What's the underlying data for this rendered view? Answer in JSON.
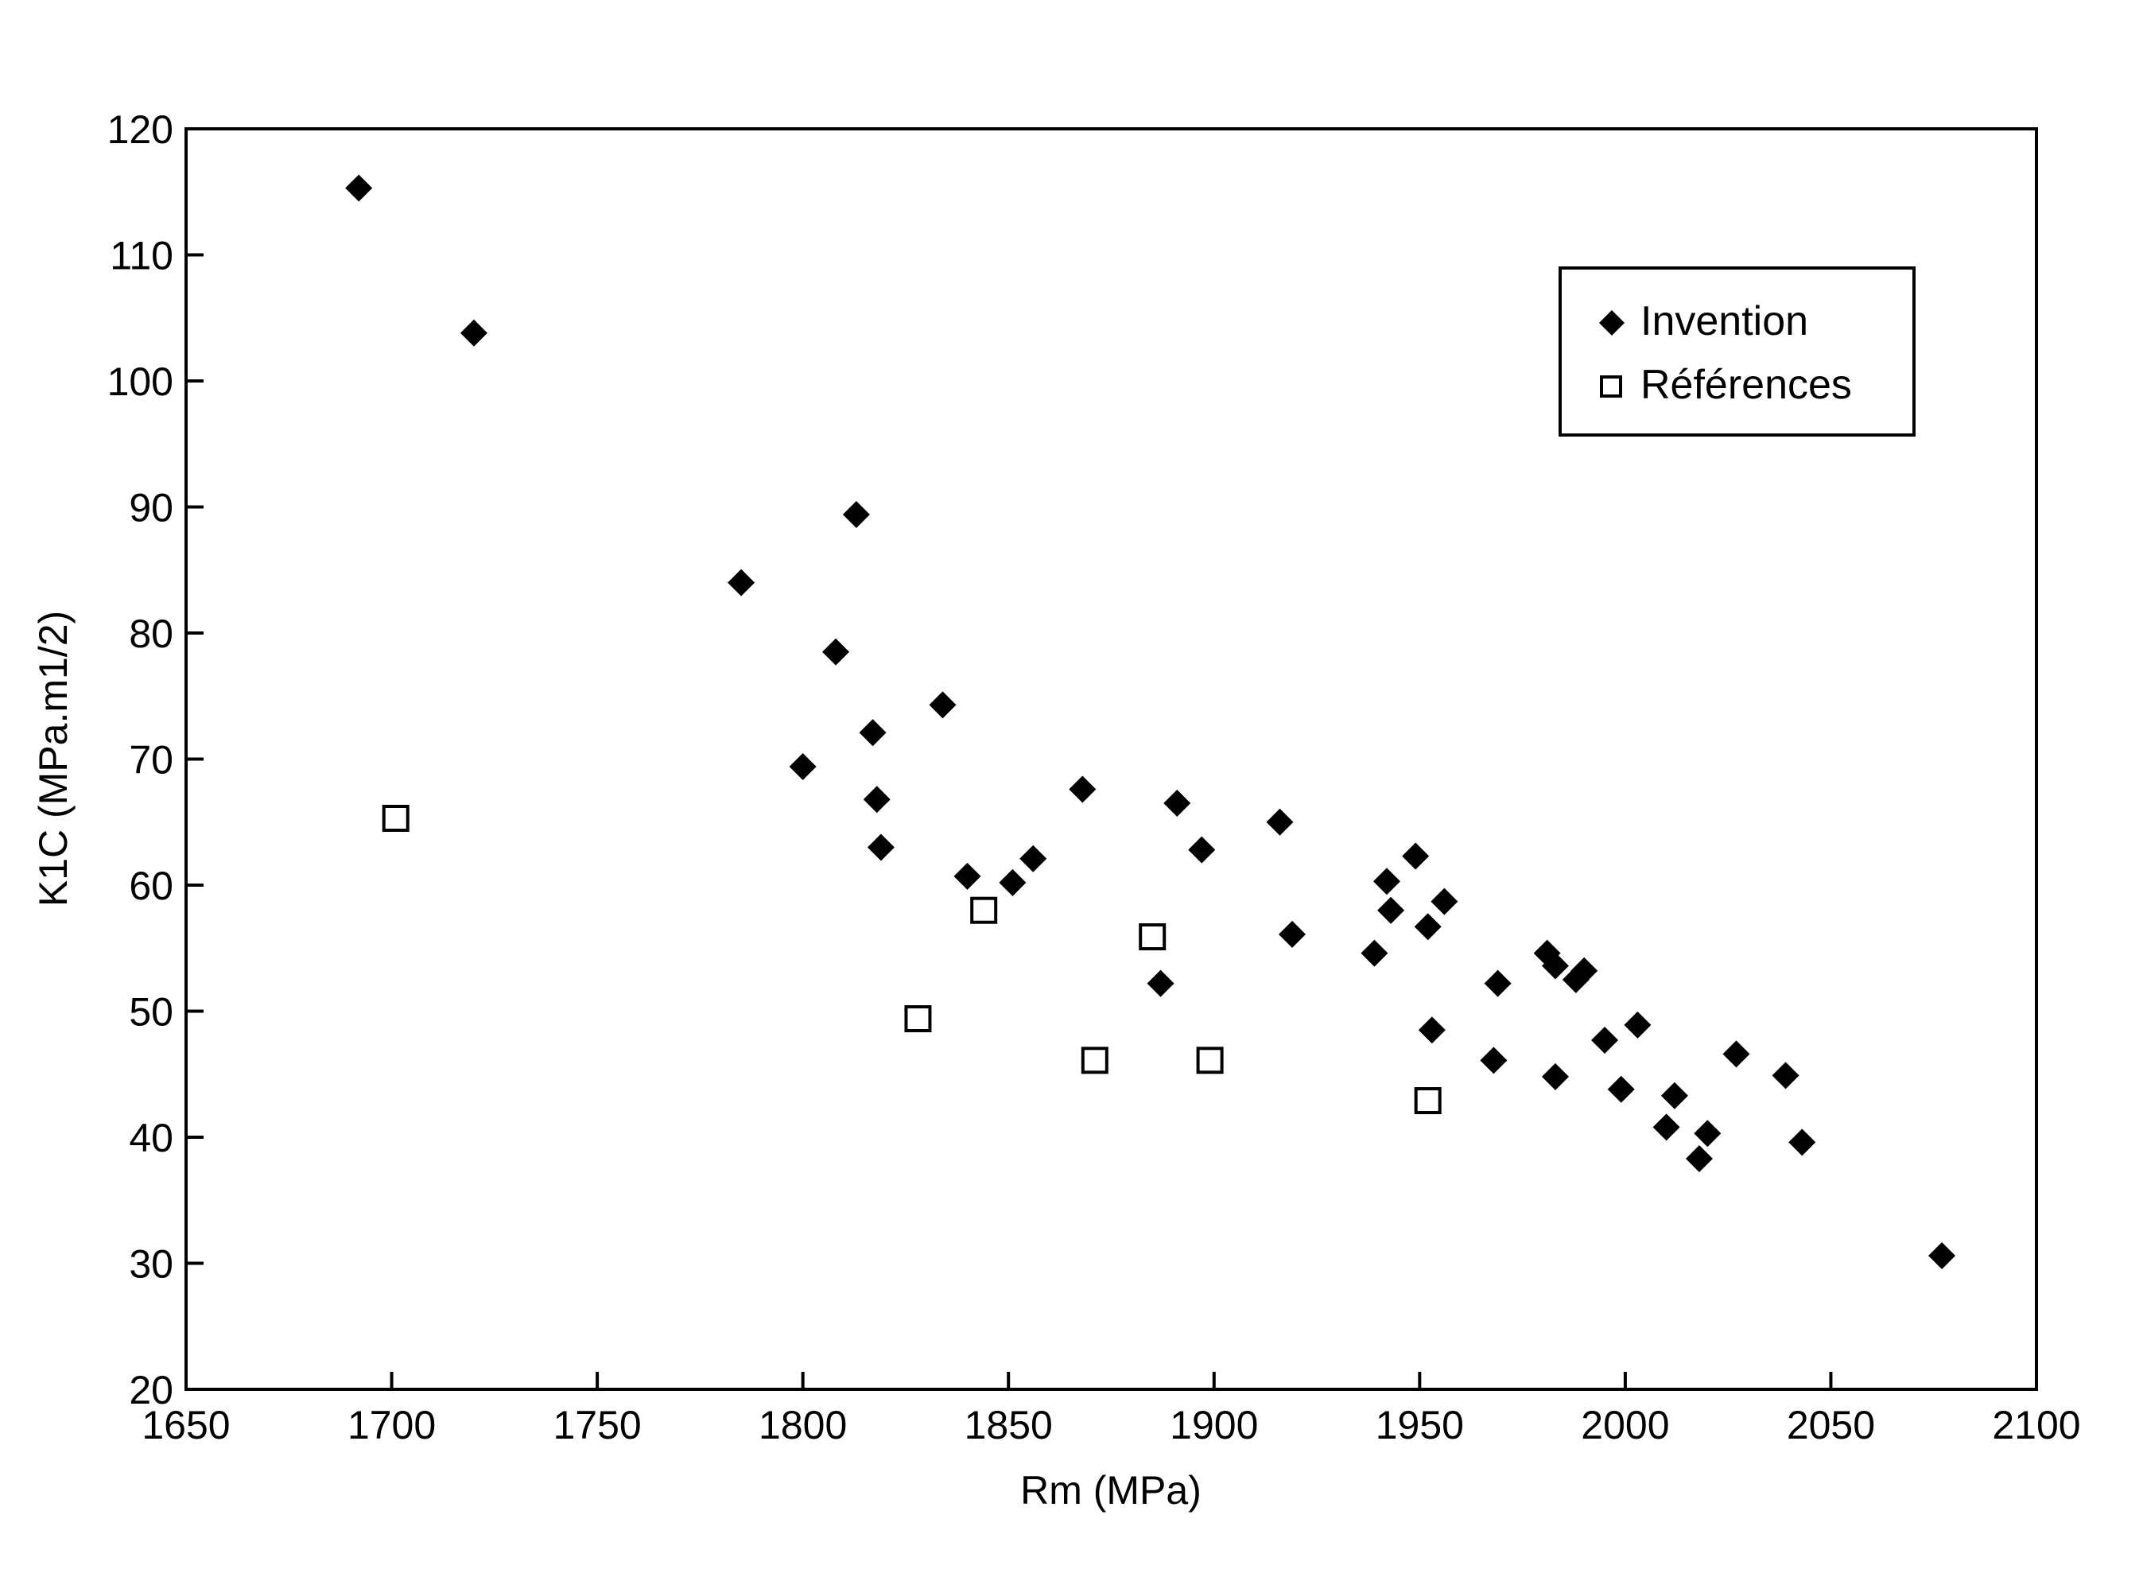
{
  "chart_data": {
    "type": "scatter",
    "title": "",
    "xlabel": "Rm (MPa)",
    "ylabel": "K1C (MPa.m1/2)",
    "xlim": [
      1650,
      2100
    ],
    "ylim": [
      20,
      120
    ],
    "xticks": [
      1650,
      1700,
      1750,
      1800,
      1850,
      1900,
      1950,
      2000,
      2050,
      2100
    ],
    "yticks": [
      20,
      30,
      40,
      50,
      60,
      70,
      80,
      90,
      100,
      110,
      120
    ],
    "grid": false,
    "legend_position": "top-right",
    "series": [
      {
        "name": "Invention",
        "marker": "filled-diamond",
        "color": "#000000",
        "points": [
          [
            1692,
            115.3
          ],
          [
            1720,
            103.8
          ],
          [
            1785,
            84.0
          ],
          [
            1813,
            89.4
          ],
          [
            1800,
            69.4
          ],
          [
            1808,
            78.5
          ],
          [
            1817,
            72.1
          ],
          [
            1818,
            66.8
          ],
          [
            1819,
            63.0
          ],
          [
            1834,
            74.3
          ],
          [
            1840,
            60.7
          ],
          [
            1851,
            60.2
          ],
          [
            1856,
            62.1
          ],
          [
            1868,
            67.6
          ],
          [
            1887,
            52.2
          ],
          [
            1891,
            66.5
          ],
          [
            1897,
            62.8
          ],
          [
            1916,
            65.0
          ],
          [
            1919,
            56.1
          ],
          [
            1939,
            54.6
          ],
          [
            1942,
            60.3
          ],
          [
            1943,
            58.0
          ],
          [
            1949,
            62.3
          ],
          [
            1952,
            56.7
          ],
          [
            1953,
            48.5
          ],
          [
            1956,
            58.7
          ],
          [
            1968,
            46.1
          ],
          [
            1969,
            52.2
          ],
          [
            1981,
            54.6
          ],
          [
            1983,
            53.6
          ],
          [
            1983,
            44.8
          ],
          [
            1988,
            52.5
          ],
          [
            1990,
            53.2
          ],
          [
            1995,
            47.7
          ],
          [
            1999,
            43.8
          ],
          [
            2003,
            48.9
          ],
          [
            2010,
            40.8
          ],
          [
            2012,
            43.3
          ],
          [
            2018,
            38.3
          ],
          [
            2020,
            40.3
          ],
          [
            2027,
            46.6
          ],
          [
            2039,
            44.9
          ],
          [
            2043,
            39.6
          ],
          [
            2077,
            30.6
          ]
        ]
      },
      {
        "name": "Références",
        "marker": "open-square",
        "color": "#000000",
        "points": [
          [
            1701,
            65.3
          ],
          [
            1828,
            49.4
          ],
          [
            1844,
            58.0
          ],
          [
            1871,
            46.1
          ],
          [
            1885,
            55.9
          ],
          [
            1899,
            46.1
          ],
          [
            1952,
            42.9
          ]
        ]
      }
    ]
  }
}
